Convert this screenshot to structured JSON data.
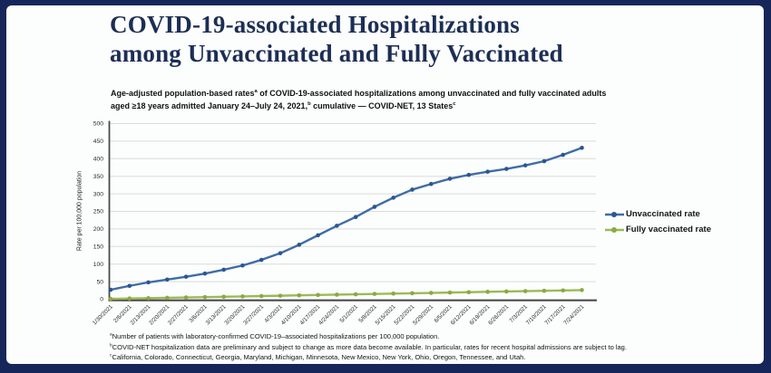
{
  "frame": {
    "border_color": "#16265a",
    "slide_bg": "#fcfdfd",
    "title_color": "#1d2e54"
  },
  "title": {
    "line1": "COVID-19-associated Hospitalizations",
    "line2": "among Unvaccinated and Fully Vaccinated"
  },
  "subtitle": {
    "part1": "Age-adjusted population-based rates",
    "sup1": "a",
    "part2": " of COVID-19-associated hospitalizations among unvaccinated and fully vaccinated adults aged ≥18 years admitted January 24–July 24, 2021,",
    "sup2": "b",
    "part3": " cumulative — COVID-NET, 13 States",
    "sup3": "c"
  },
  "chart_data": {
    "type": "line",
    "x": [
      "1/30/2021",
      "2/6/2021",
      "2/13/2021",
      "2/20/2021",
      "2/27/2021",
      "3/6/2021",
      "3/13/2021",
      "3/20/2021",
      "3/27/2021",
      "4/3/2021",
      "4/10/2021",
      "4/17/2021",
      "4/24/2021",
      "5/1/2021",
      "5/8/2021",
      "5/15/2021",
      "5/22/2021",
      "5/29/2021",
      "6/5/2021",
      "6/12/2021",
      "6/19/2021",
      "6/26/2021",
      "7/3/2021",
      "7/10/2021",
      "7/17/2021",
      "7/24/2021"
    ],
    "series": [
      {
        "name": "Unvaccinated rate",
        "color": "#3f6da6",
        "marker_color": "#2b568f",
        "values": [
          27,
          38,
          48,
          56,
          64,
          73,
          84,
          96,
          112,
          131,
          155,
          182,
          209,
          234,
          263,
          289,
          312,
          328,
          343,
          354,
          363,
          371,
          381,
          393,
          411,
          431
        ]
      },
      {
        "name": "Fully vaccinated rate",
        "color": "#9cba55",
        "marker_color": "#8aa944",
        "values": [
          1,
          2,
          3,
          4,
          5,
          6,
          7,
          8,
          9,
          10,
          11,
          12,
          13,
          14,
          15,
          16,
          17,
          18,
          19,
          20,
          21,
          22,
          23,
          24,
          25,
          26
        ]
      }
    ],
    "ylabel": "Rate per 100,000 population",
    "ylim": [
      0,
      500
    ],
    "ytick_step": 50,
    "grid": true,
    "legend_position": "right"
  },
  "footnotes": [
    {
      "sup": "a",
      "text": "Number of patients with laboratory-confirmed COVID-19–associated hospitalizations per 100,000 population."
    },
    {
      "sup": "b",
      "text": "COVID-NET hospitalization data are preliminary and subject to change as more data become available. In particular, rates for recent hospital admissions are subject to lag."
    },
    {
      "sup": "c",
      "text": "California, Colorado, Connecticut, Georgia, Maryland, Michigan, Minnesota, New Mexico, New York, Ohio, Oregon, Tennessee, and Utah."
    }
  ]
}
